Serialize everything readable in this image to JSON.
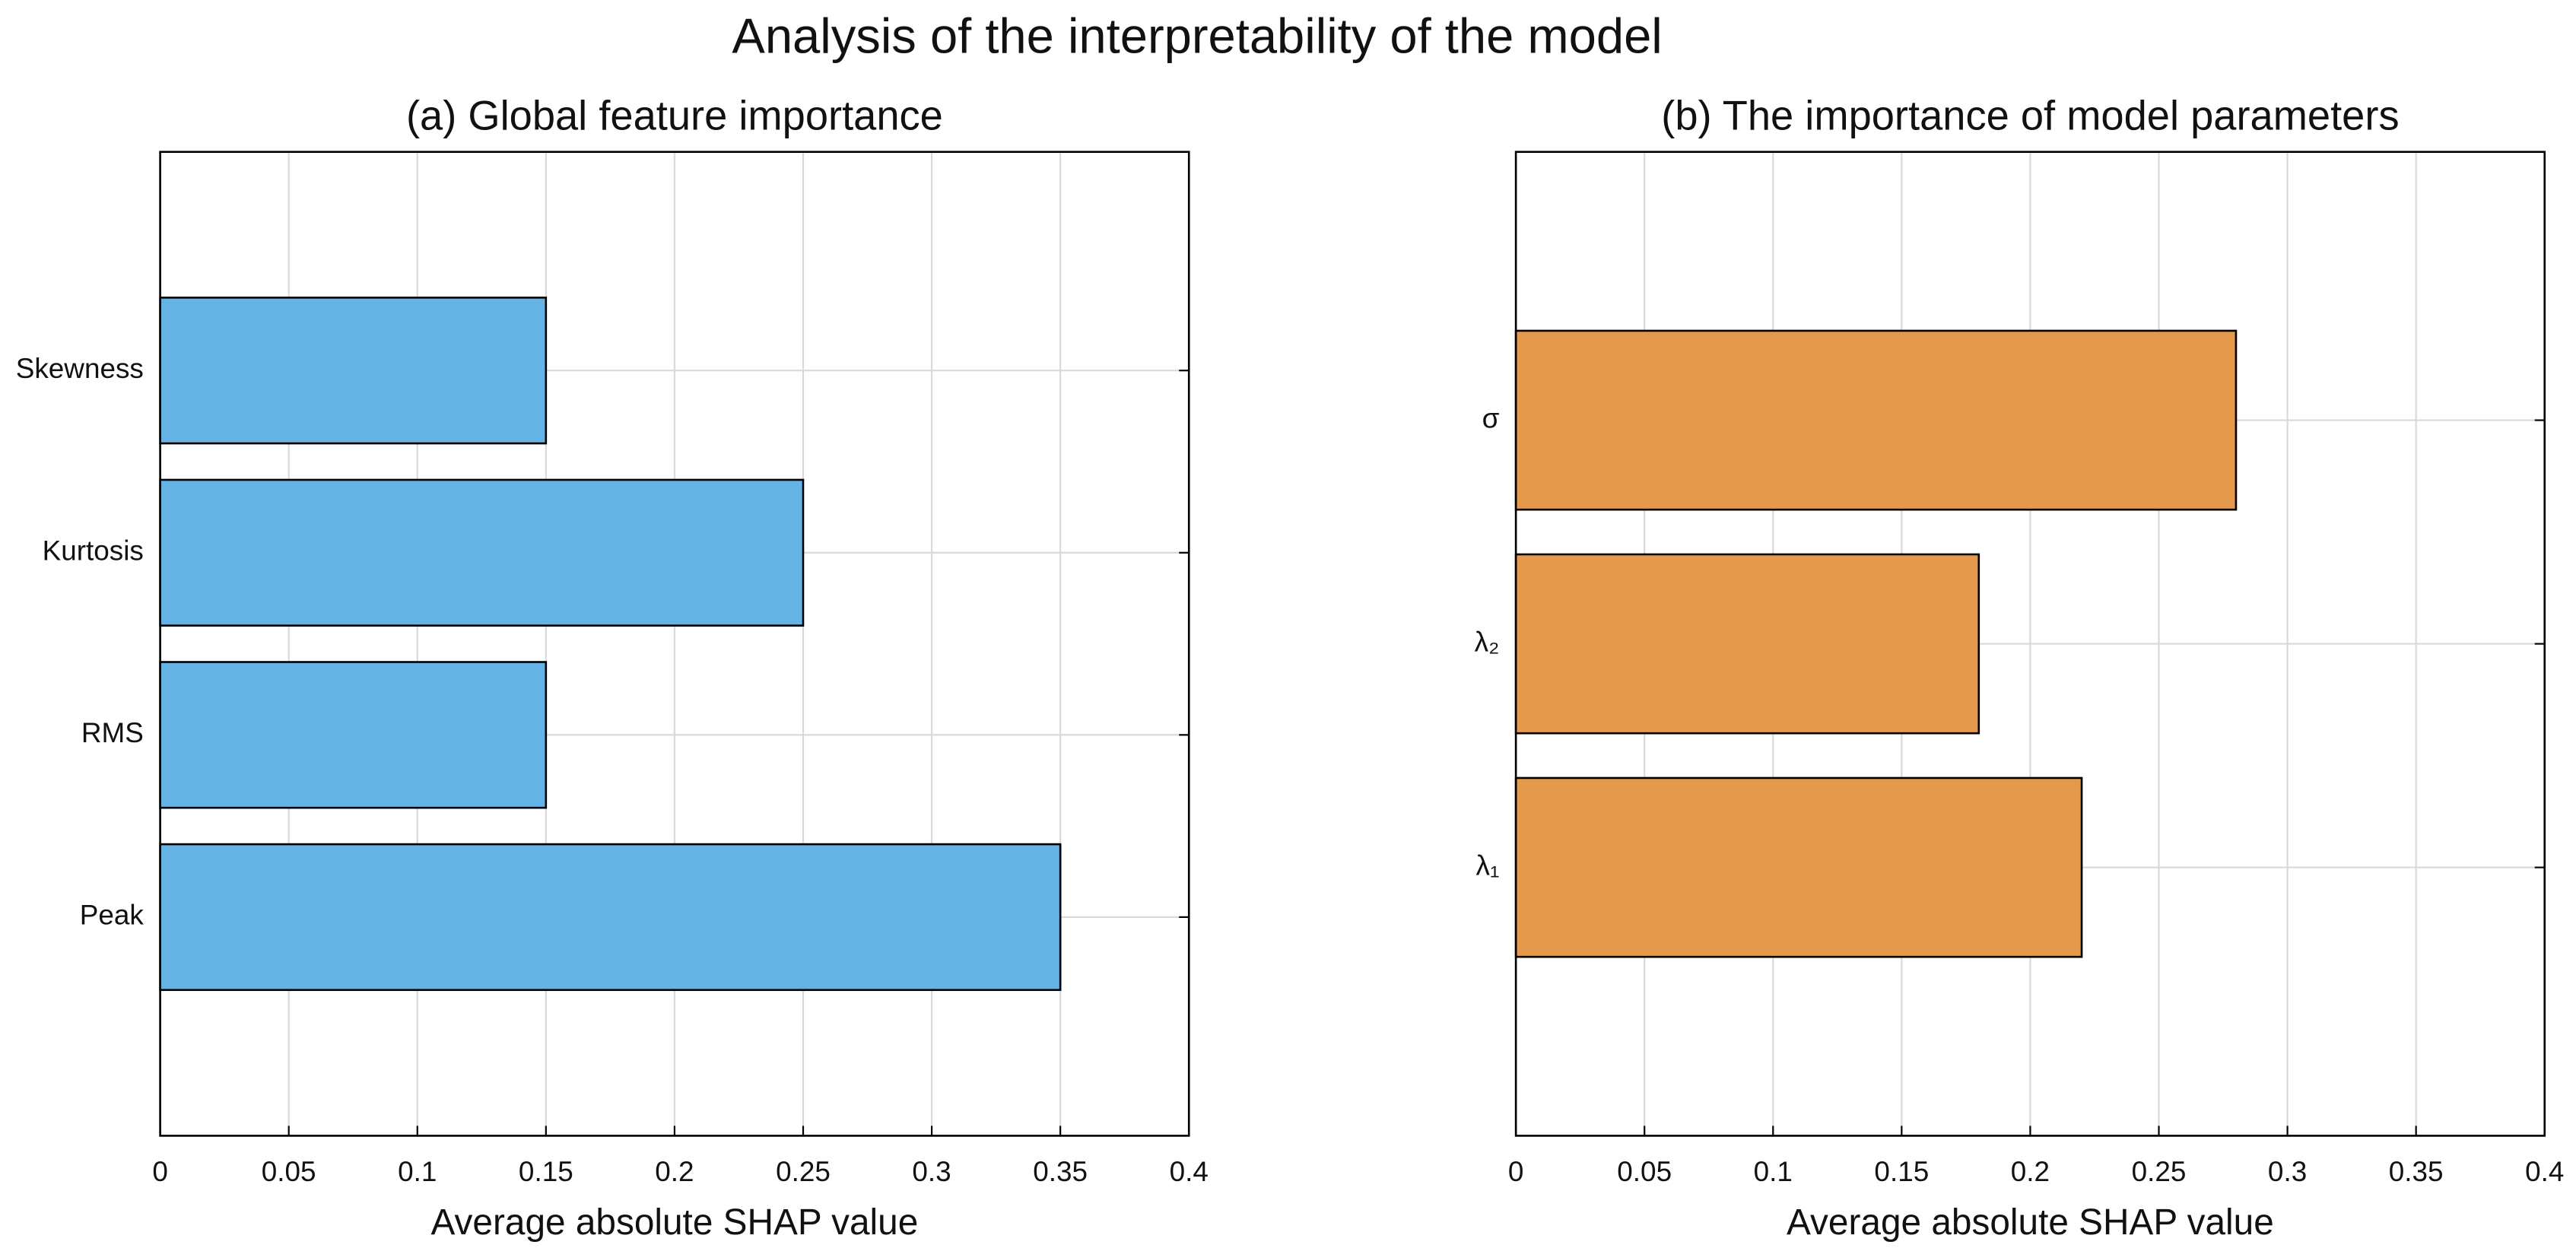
{
  "title": "Analysis of the interpretability of the model",
  "chart_data": [
    {
      "type": "barh",
      "title": "(a) Global feature importance",
      "x_label": "Average absolute SHAP value",
      "categories": [
        "Peak",
        "RMS",
        "Kurtosis",
        "Skewness"
      ],
      "values": [
        0.35,
        0.15,
        0.25,
        0.15
      ],
      "color": "#65b3e4",
      "xlim": [
        0,
        0.4
      ],
      "xticks": [
        0,
        0.05,
        0.1,
        0.15,
        0.2,
        0.25,
        0.3,
        0.35,
        0.4
      ],
      "grid": true
    },
    {
      "type": "barh",
      "title": "(b) The importance of model parameters",
      "x_label": "Average absolute SHAP value",
      "categories": [
        "λ₁",
        "λ₂",
        "σ"
      ],
      "values": [
        0.22,
        0.18,
        0.28
      ],
      "color": "#e5994c",
      "xlim": [
        0,
        0.4
      ],
      "xticks": [
        0,
        0.05,
        0.1,
        0.15,
        0.2,
        0.25,
        0.3,
        0.35,
        0.4
      ],
      "grid": true
    }
  ]
}
